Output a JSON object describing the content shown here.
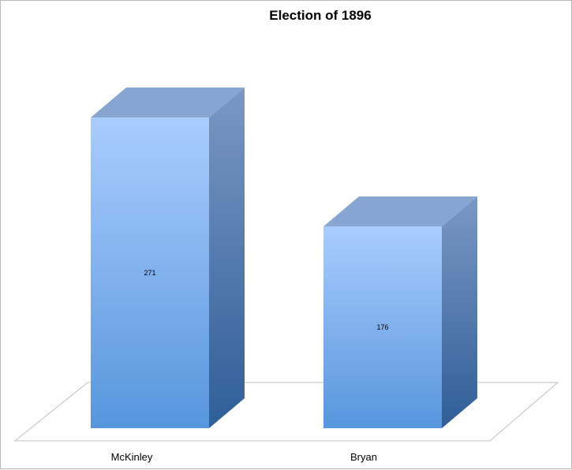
{
  "chart_data": {
    "type": "bar",
    "title": "Election of 1896",
    "categories": [
      "McKinley",
      "Bryan"
    ],
    "values": [
      271,
      176
    ],
    "xlabel": "",
    "ylabel": "",
    "grid": false,
    "legend": "none",
    "style": "3d-column"
  },
  "colors": {
    "front_top": "#a9cdfd",
    "front_bottom": "#5796dd",
    "side_top": "#7a98c4",
    "side_bottom": "#2f5e97",
    "top_face": "#86a5d1",
    "floor": "#ffffff",
    "floor_stroke": "#c0c0c0"
  }
}
